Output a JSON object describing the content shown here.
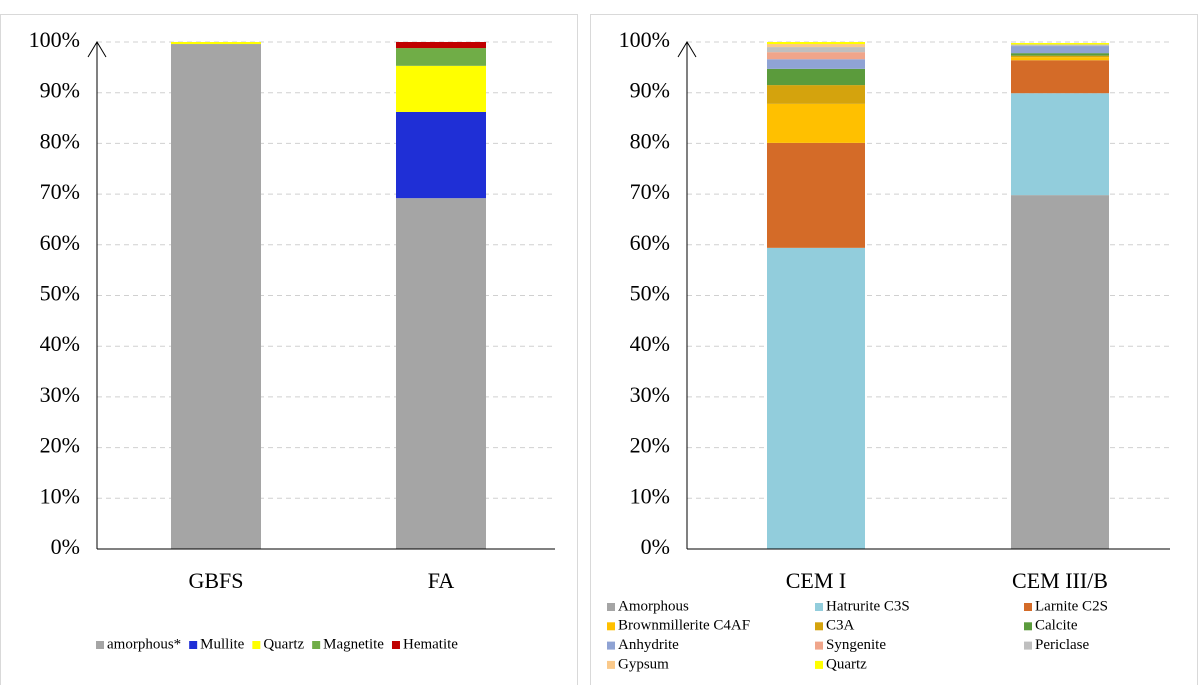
{
  "chart_data": [
    {
      "type": "stacked_bar",
      "categories": [
        "GBFS",
        "FA"
      ],
      "series": [
        {
          "name": "amorphous*",
          "color": "#a5a5a5",
          "values": [
            99.6,
            69.2
          ]
        },
        {
          "name": "Mullite",
          "color": "#1f2fd6",
          "values": [
            0,
            17.0
          ]
        },
        {
          "name": "Quartz",
          "color": "#ffff00",
          "values": [
            0.4,
            9.1
          ]
        },
        {
          "name": "Magnetite",
          "color": "#70ad47",
          "values": [
            0,
            3.5
          ]
        },
        {
          "name": "Hematite",
          "color": "#c00000",
          "values": [
            0,
            1.2
          ]
        }
      ],
      "ylim": [
        0,
        100
      ],
      "yticks": [
        {
          "value": 0,
          "label": "0%"
        },
        {
          "value": 10,
          "label": "10%"
        },
        {
          "value": 20,
          "label": "20%"
        },
        {
          "value": 30,
          "label": "30%"
        },
        {
          "value": 40,
          "label": "40%"
        },
        {
          "value": 50,
          "label": "50%"
        },
        {
          "value": 60,
          "label": "60%"
        },
        {
          "value": 70,
          "label": "70%"
        },
        {
          "value": 80,
          "label": "80%"
        },
        {
          "value": 90,
          "label": "90%"
        },
        {
          "value": 100,
          "label": "100%"
        }
      ],
      "grid": true,
      "legend": "bottom"
    },
    {
      "type": "stacked_bar",
      "categories": [
        "CEM I",
        "CEM III/B"
      ],
      "series": [
        {
          "name": "Amorphous",
          "color": "#a5a5a5",
          "values": [
            0,
            69.8
          ]
        },
        {
          "name": "Hatrurite C3S",
          "color": "#92cddc",
          "values": [
            59.4,
            20.1
          ]
        },
        {
          "name": "Larnite C2S",
          "color": "#d46b28",
          "values": [
            20.7,
            6.5
          ]
        },
        {
          "name": "Brownmillerite C4AF",
          "color": "#ffc000",
          "values": [
            7.7,
            0.6
          ]
        },
        {
          "name": "C3A",
          "color": "#d4a30d",
          "values": [
            3.7,
            0.3
          ]
        },
        {
          "name": "Calcite",
          "color": "#5b9b3c",
          "values": [
            3.2,
            0.5
          ]
        },
        {
          "name": "Anhydrite",
          "color": "#8fa3d4",
          "values": [
            1.9,
            1.4
          ]
        },
        {
          "name": "Syngenite",
          "color": "#f0a58a",
          "values": [
            1.4,
            0
          ]
        },
        {
          "name": "Periclase",
          "color": "#bfbfbf",
          "values": [
            1.0,
            0.3
          ]
        },
        {
          "name": "Gypsum",
          "color": "#fac98a",
          "values": [
            0.6,
            0
          ]
        },
        {
          "name": "Quartz",
          "color": "#ffff00",
          "values": [
            0.4,
            0.3
          ]
        }
      ],
      "ylim": [
        0,
        100
      ],
      "yticks": [
        {
          "value": 0,
          "label": "0%"
        },
        {
          "value": 10,
          "label": "10%"
        },
        {
          "value": 20,
          "label": "20%"
        },
        {
          "value": 30,
          "label": "30%"
        },
        {
          "value": 40,
          "label": "40%"
        },
        {
          "value": 50,
          "label": "50%"
        },
        {
          "value": 60,
          "label": "60%"
        },
        {
          "value": 70,
          "label": "70%"
        },
        {
          "value": 80,
          "label": "80%"
        },
        {
          "value": 90,
          "label": "90%"
        },
        {
          "value": 100,
          "label": "100%"
        }
      ],
      "grid": true,
      "legend": "bottom"
    }
  ]
}
